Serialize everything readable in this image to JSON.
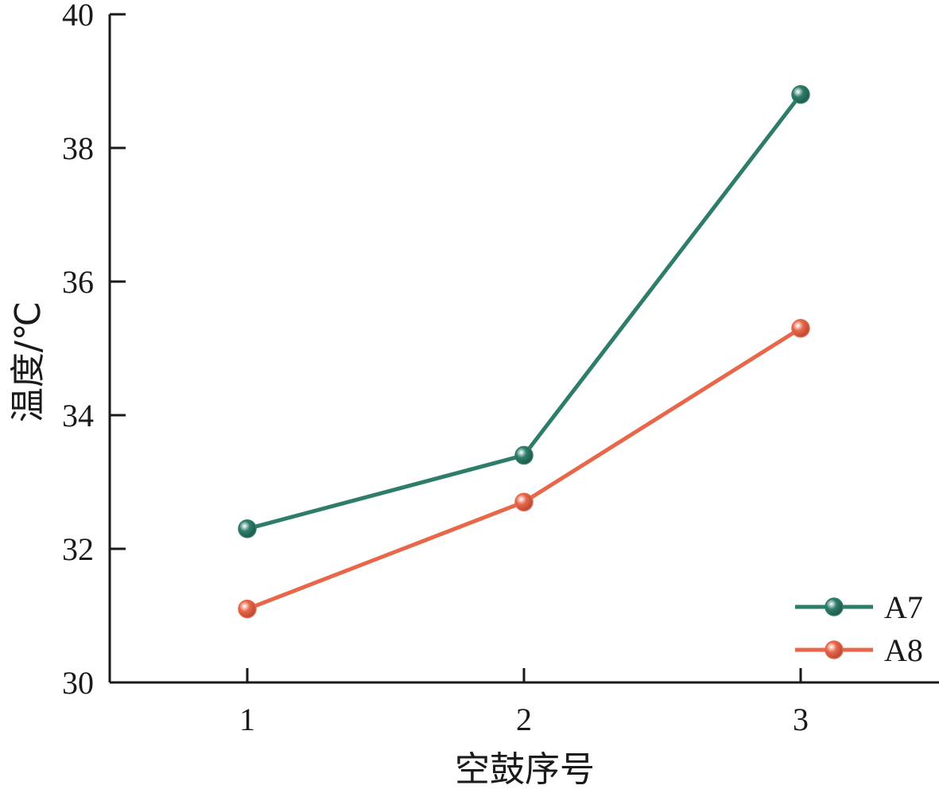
{
  "chart_data": {
    "type": "line",
    "categories": [
      1,
      2,
      3
    ],
    "xlabel": "空鼓序号",
    "ylabel": "温度/℃",
    "ylim": [
      30,
      40
    ],
    "yticks": [
      30,
      32,
      34,
      36,
      38,
      40
    ],
    "grid": false,
    "legend_position": "bottom-right",
    "series": [
      {
        "name": "A7",
        "color": "#2e7d6b",
        "values": [
          32.3,
          33.4,
          38.8
        ]
      },
      {
        "name": "A8",
        "color": "#e8664a",
        "values": [
          31.1,
          32.7,
          35.3
        ]
      }
    ]
  }
}
